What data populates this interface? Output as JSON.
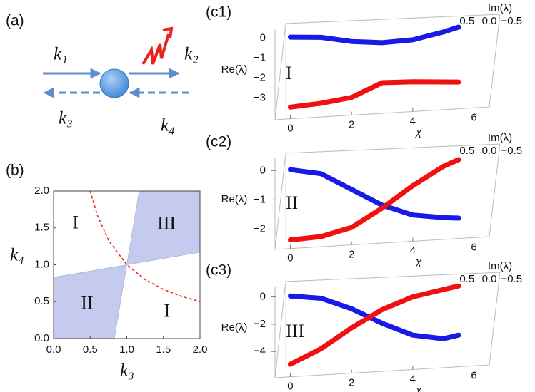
{
  "panel_a": {
    "label": "(a)",
    "k1": "k₁",
    "k2": "k₂",
    "k3": "k₃",
    "k4": "k₄"
  },
  "chart_data": [
    {
      "type": "region",
      "panel_label": "(b)",
      "xlabel": "k₃",
      "ylabel": "k₄",
      "xlim": [
        0,
        2
      ],
      "ylim": [
        0,
        2
      ],
      "xticks": [
        {
          "value": 0,
          "label": "0.0"
        },
        {
          "value": 0.5,
          "label": "0.5"
        },
        {
          "value": 1,
          "label": "1.0"
        },
        {
          "value": 1.5,
          "label": "1.5"
        },
        {
          "value": 2,
          "label": "2.0"
        }
      ],
      "yticks": [
        {
          "value": 0,
          "label": "0.0"
        },
        {
          "value": 0.5,
          "label": "0.5"
        },
        {
          "value": 1,
          "label": "1.0"
        },
        {
          "value": 1.5,
          "label": "1.5"
        },
        {
          "value": 2,
          "label": "2.0"
        }
      ],
      "regions": [
        {
          "label": "III",
          "color": "#c5cbef",
          "x": [
            1,
            1.17,
            2,
            2
          ],
          "y": [
            1,
            2,
            2,
            1.17
          ]
        },
        {
          "label": "II",
          "color": "#c5cbef",
          "x": [
            0,
            1,
            0.83,
            0
          ],
          "y": [
            0.83,
            1,
            0,
            0
          ]
        }
      ],
      "region_labels": [
        "I",
        "I"
      ],
      "series": [
        {
          "color": "#e8211f",
          "dashed": true,
          "x": [
            0.5,
            0.6,
            0.75,
            1,
            1.25,
            1.5,
            1.75,
            2
          ],
          "values": [
            2,
            1.667,
            1.333,
            1,
            0.8,
            0.667,
            0.571,
            0.5
          ]
        }
      ]
    },
    {
      "type": "line3d",
      "panel_label": "(c1)",
      "ylabel": "Re(λ)",
      "xlabel": "χ",
      "zlabel": "Im(λ)",
      "region": "I",
      "x": [
        0,
        1,
        2,
        3,
        4,
        5,
        5.5
      ],
      "xlim": [
        -0.5,
        6.5
      ],
      "xticks": [
        0,
        2,
        4,
        6
      ],
      "ylim": [
        -3.8,
        0.3
      ],
      "yticks": [
        0,
        {
          "value": -1,
          "label": "−1"
        },
        {
          "value": -2,
          "label": "−2"
        },
        {
          "value": -3,
          "label": "−3"
        }
      ],
      "zlim": [
        0.8,
        -0.8
      ],
      "zticks": [
        {
          "value": 0.5,
          "label": "0.5"
        },
        {
          "value": 0,
          "label": "0.0"
        },
        {
          "value": -0.5,
          "label": "−0.5"
        }
      ],
      "series": [
        {
          "color": "#1a1ae6",
          "values": [
            0,
            -0.1,
            -0.4,
            -0.55,
            -0.5,
            -0.2,
            0
          ]
        },
        {
          "color": "#f01010",
          "values": [
            -3.5,
            -3.4,
            -3.2,
            -2.55,
            -2.6,
            -2.7,
            -2.75
          ]
        }
      ]
    },
    {
      "type": "line3d",
      "panel_label": "(c2)",
      "ylabel": "Re(λ)",
      "xlabel": "χ",
      "zlabel": "Im(λ)",
      "region": "II",
      "x": [
        0,
        1,
        2,
        3,
        4,
        5,
        5.5
      ],
      "xlim": [
        -0.5,
        6.5
      ],
      "xticks": [
        0,
        2,
        4,
        6
      ],
      "ylim": [
        -2.5,
        0.3
      ],
      "yticks": [
        0,
        {
          "value": -1,
          "label": "−1"
        },
        {
          "value": -2,
          "label": "−2"
        }
      ],
      "zlim": [
        0.8,
        -0.8
      ],
      "zticks": [
        {
          "value": 0.5,
          "label": "0.5"
        },
        {
          "value": 0,
          "label": "0.0"
        },
        {
          "value": -0.5,
          "label": "−0.5"
        }
      ],
      "series": [
        {
          "color": "#1a1ae6",
          "values": [
            0,
            -0.2,
            -0.8,
            -1.4,
            -1.8,
            -1.95,
            -2.0
          ]
        },
        {
          "color": "#f01010",
          "values": [
            -2.4,
            -2.35,
            -2.1,
            -1.5,
            -0.8,
            -0.2,
            0
          ]
        }
      ]
    },
    {
      "type": "line3d",
      "panel_label": "(c3)",
      "ylabel": "Re(λ)",
      "xlabel": "χ",
      "zlabel": "Im(λ)",
      "region": "III",
      "x": [
        0,
        1,
        2,
        3,
        4,
        5,
        5.5
      ],
      "xlim": [
        -0.5,
        6.5
      ],
      "xticks": [
        0,
        2,
        4,
        6
      ],
      "ylim": [
        -5.5,
        0.5
      ],
      "yticks": [
        0,
        {
          "value": -2,
          "label": "−2"
        },
        {
          "value": -4,
          "label": "−4"
        }
      ],
      "zlim": [
        0.8,
        -0.8
      ],
      "zticks": [
        {
          "value": 0.5,
          "label": "0.5"
        },
        {
          "value": 0,
          "label": "0.0"
        },
        {
          "value": -0.5,
          "label": "−0.5"
        }
      ],
      "series": [
        {
          "color": "#1a1ae6",
          "values": [
            0,
            -0.3,
            -1.2,
            -2.4,
            -3.4,
            -3.8,
            -3.6
          ]
        },
        {
          "color": "#f01010",
          "values": [
            -5,
            -4,
            -2.6,
            -1.4,
            -0.6,
            -0.2,
            0
          ]
        }
      ]
    }
  ]
}
